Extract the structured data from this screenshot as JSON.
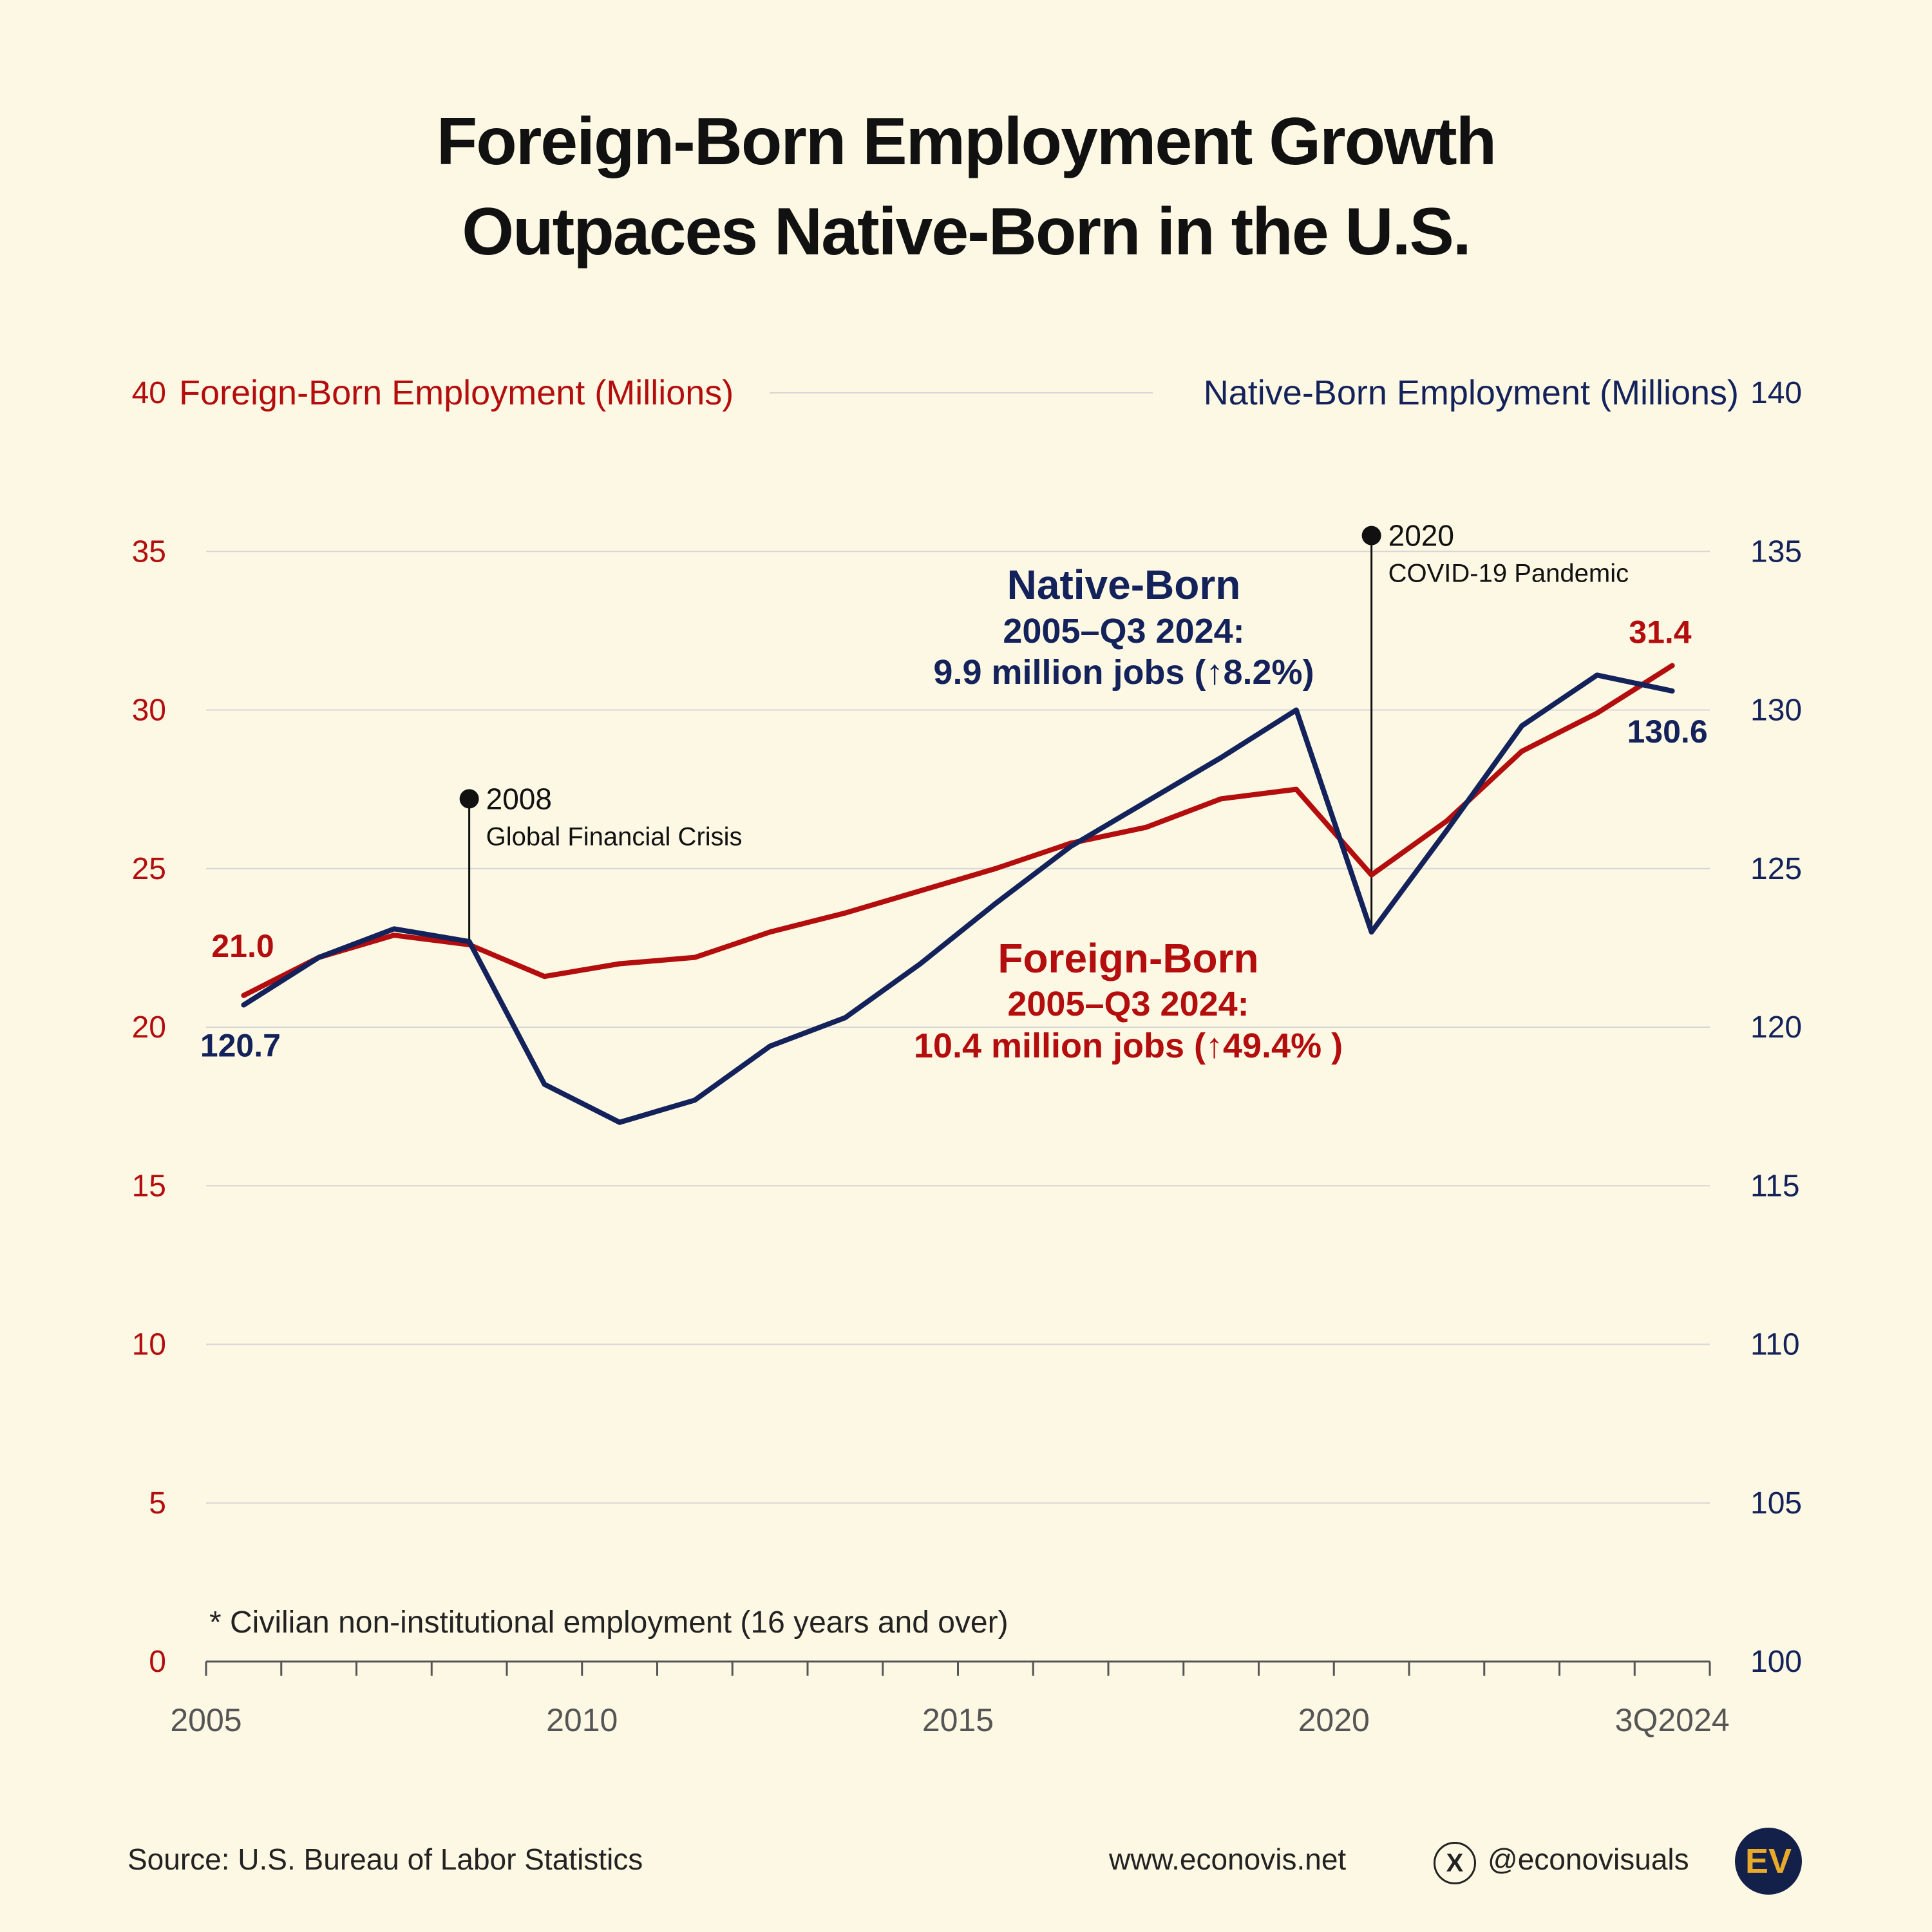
{
  "title": {
    "line1": "Foreign-Born Employment Growth",
    "line2": "Outpaces Native-Born in the U.S."
  },
  "colors": {
    "foreign": "#b30d0d",
    "native": "#13225a",
    "background": "#fdf8e4",
    "grid": "#d6d6d6",
    "axis_text": "#555555"
  },
  "chart_data": {
    "type": "line",
    "x_ticks": [
      {
        "x": 2005,
        "label": "2005"
      },
      {
        "x": 2010,
        "label": "2010"
      },
      {
        "x": 2015,
        "label": "2015"
      },
      {
        "x": 2020,
        "label": "2020"
      },
      {
        "x": 2024.5,
        "label": "3Q2024"
      }
    ],
    "x_minor_ticks": [
      2005,
      2006,
      2007,
      2008,
      2009,
      2010,
      2011,
      2012,
      2013,
      2014,
      2015,
      2016,
      2017,
      2018,
      2019,
      2020,
      2021,
      2022,
      2023,
      2024,
      2025
    ],
    "xlim": [
      2005,
      2025
    ],
    "left_axis": {
      "label": "Foreign-Born Employment (Millions)",
      "range": [
        0,
        40
      ],
      "ticks": [
        0,
        5,
        10,
        15,
        20,
        25,
        30,
        35,
        40
      ]
    },
    "right_axis": {
      "label": "Native-Born Employment (Millions)",
      "range": [
        100,
        140
      ],
      "ticks": [
        100,
        105,
        110,
        115,
        120,
        125,
        130,
        135,
        140
      ]
    },
    "series": [
      {
        "name": "Foreign-Born",
        "axis": "left",
        "x": [
          2005.5,
          2006.5,
          2007.5,
          2008.5,
          2009.5,
          2010.5,
          2011.5,
          2012.5,
          2013.5,
          2014.5,
          2015.5,
          2016.5,
          2017.5,
          2018.5,
          2019.5,
          2020.5,
          2021.5,
          2022.5,
          2023.5,
          2024.5
        ],
        "values": [
          21.0,
          22.2,
          22.9,
          22.6,
          21.6,
          22.0,
          22.2,
          23.0,
          23.6,
          24.3,
          25.0,
          25.8,
          26.3,
          27.2,
          27.5,
          24.8,
          26.5,
          28.7,
          29.9,
          31.4
        ]
      },
      {
        "name": "Native-Born",
        "axis": "right",
        "x": [
          2005.5,
          2006.5,
          2007.5,
          2008.5,
          2009.5,
          2010.5,
          2011.5,
          2012.5,
          2013.5,
          2014.5,
          2015.5,
          2016.5,
          2017.5,
          2018.5,
          2019.5,
          2020.5,
          2021.5,
          2022.5,
          2023.5,
          2024.5
        ],
        "values": [
          120.7,
          122.2,
          123.1,
          122.7,
          118.2,
          117.0,
          117.7,
          119.4,
          120.3,
          122.0,
          123.9,
          125.7,
          127.1,
          128.5,
          130.0,
          123.0,
          126.2,
          129.5,
          131.1,
          130.6
        ]
      }
    ],
    "point_labels": {
      "foreign_start": "21.0",
      "foreign_end": "31.4",
      "native_start": "120.7",
      "native_end": "130.6"
    },
    "events": [
      {
        "x": 2008.5,
        "year": "2008",
        "desc": "Global Financial Crisis",
        "y_left": 27.2,
        "line_to": "native"
      },
      {
        "x": 2020.5,
        "year": "2020",
        "desc": "COVID-19 Pandemic",
        "y_left": 35.5,
        "line_to": "native"
      }
    ],
    "annotations": {
      "native": {
        "title": "Native-Born",
        "line2": "2005–Q3 2024:",
        "line3": "9.9 million jobs (↑8.2%)"
      },
      "foreign": {
        "title": "Foreign-Born",
        "line2": "2005–Q3 2024:",
        "line3": "10.4 million jobs (↑49.4% )"
      }
    },
    "footnote": "* Civilian non-institutional employment (16 years and over)"
  },
  "footer": {
    "source": "Source: U.S. Bureau of Labor Statistics",
    "website": "www.econovis.net",
    "x_icon": "x-logo-icon",
    "x_letter": "X",
    "handle": "@econovisuals",
    "logo_text": "EV"
  }
}
